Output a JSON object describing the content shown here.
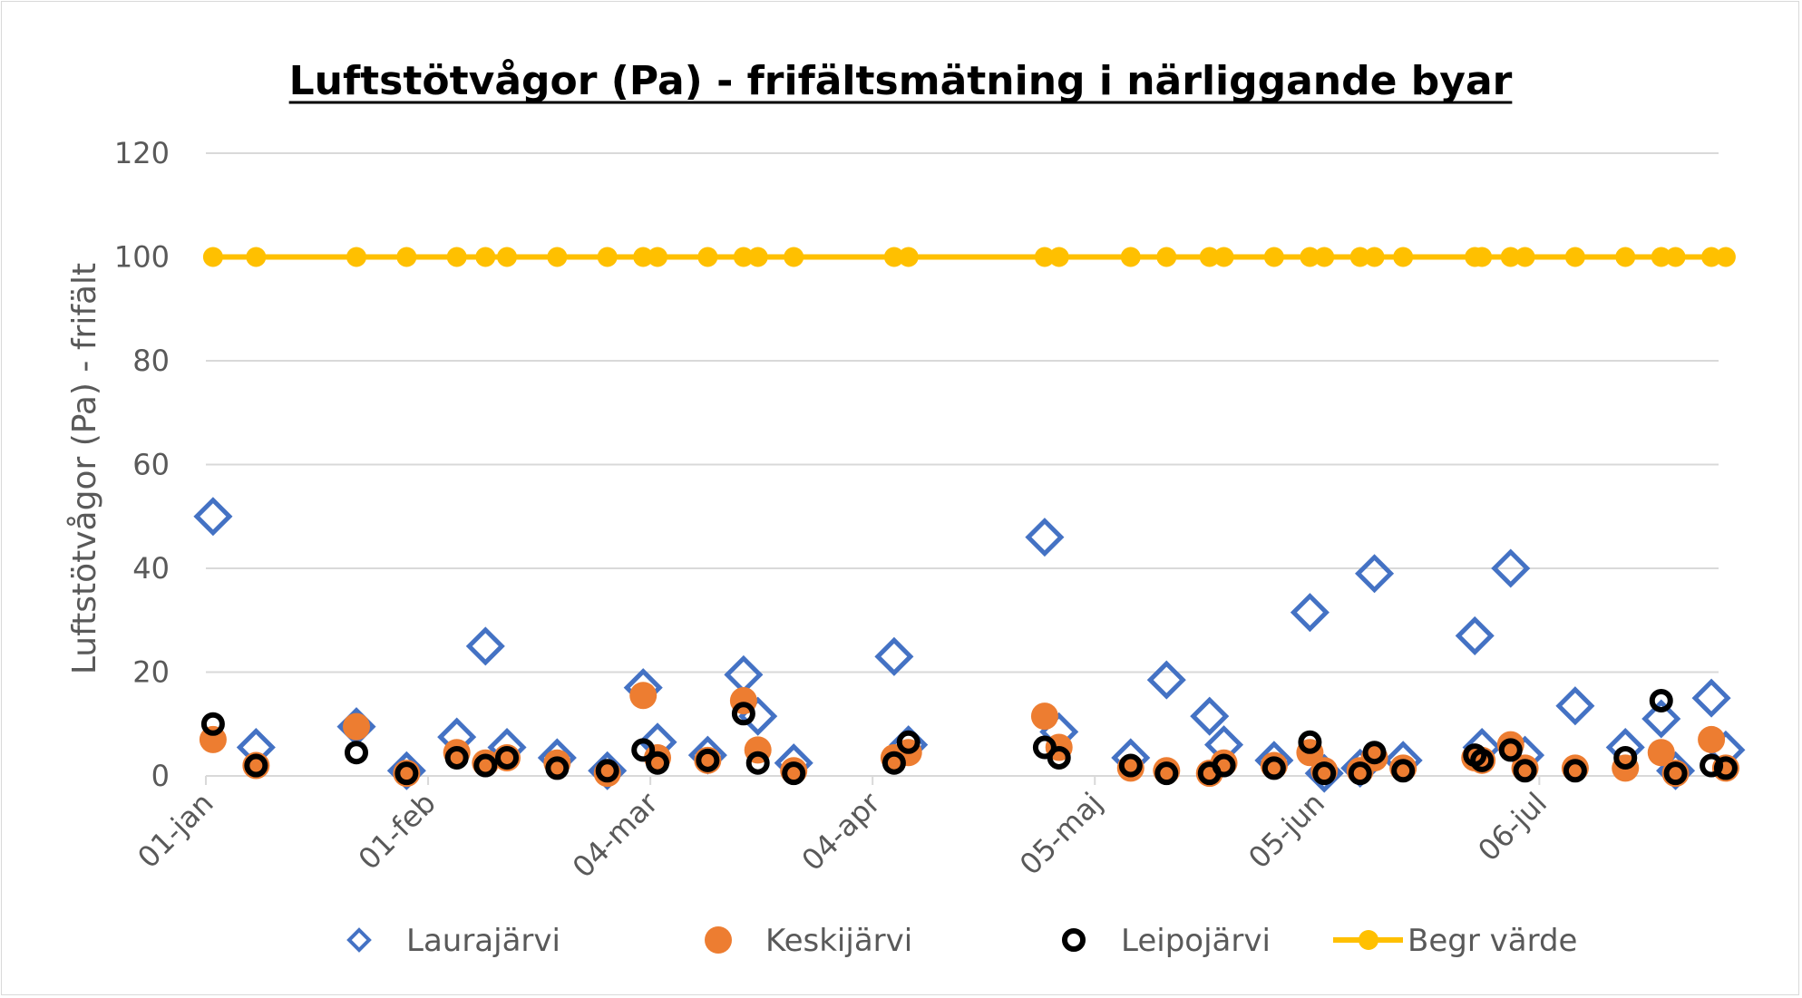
{
  "chart_data": {
    "type": "scatter",
    "title": "Luftstötvågor (Pa) - frifältsmätning i närliggande byar",
    "ylabel": "Luftstötvågor (Pa) - frifält",
    "xlabel": "",
    "ylim": [
      0,
      120
    ],
    "yticks": [
      "0",
      "20",
      "40",
      "60",
      "80",
      "100",
      "120"
    ],
    "xlim": [
      "2019-01-01",
      "2019-07-31"
    ],
    "xticks": [
      {
        "date": "2019-01-01",
        "label": "01-jan"
      },
      {
        "date": "2019-02-01",
        "label": "01-feb"
      },
      {
        "date": "2019-03-04",
        "label": "04-mar"
      },
      {
        "date": "2019-04-04",
        "label": "04-apr"
      },
      {
        "date": "2019-05-05",
        "label": "05-maj"
      },
      {
        "date": "2019-06-05",
        "label": "05-jun"
      },
      {
        "date": "2019-07-06",
        "label": "06-jul"
      }
    ],
    "grid": true,
    "legend_position": "bottom",
    "series": [
      {
        "name": "Laurajärvi",
        "marker": "diamond-open",
        "color": "#4472C4",
        "points": [
          [
            "2019-01-02",
            50
          ],
          [
            "2019-01-08",
            5.5
          ],
          [
            "2019-01-22",
            9.5
          ],
          [
            "2019-01-29",
            1
          ],
          [
            "2019-02-05",
            7.5
          ],
          [
            "2019-02-09",
            25
          ],
          [
            "2019-02-12",
            5.5
          ],
          [
            "2019-02-19",
            3.5
          ],
          [
            "2019-02-26",
            1
          ],
          [
            "2019-03-03",
            17
          ],
          [
            "2019-03-05",
            6.5
          ],
          [
            "2019-03-12",
            4
          ],
          [
            "2019-03-17",
            19.5
          ],
          [
            "2019-03-19",
            11.5
          ],
          [
            "2019-03-24",
            2.5
          ],
          [
            "2019-04-07",
            23
          ],
          [
            "2019-04-09",
            6
          ],
          [
            "2019-04-28",
            46
          ],
          [
            "2019-04-30",
            8.5
          ],
          [
            "2019-05-10",
            3.5
          ],
          [
            "2019-05-15",
            18.5
          ],
          [
            "2019-05-21",
            11.5
          ],
          [
            "2019-05-23",
            6
          ],
          [
            "2019-05-30",
            3
          ],
          [
            "2019-06-04",
            31.5
          ],
          [
            "2019-06-06",
            0.5
          ],
          [
            "2019-06-11",
            1.5
          ],
          [
            "2019-06-13",
            39
          ],
          [
            "2019-06-17",
            3
          ],
          [
            "2019-06-27",
            27
          ],
          [
            "2019-06-28",
            5.5
          ],
          [
            "2019-07-02",
            40
          ],
          [
            "2019-07-04",
            4
          ],
          [
            "2019-07-11",
            13.5
          ],
          [
            "2019-07-18",
            5.5
          ],
          [
            "2019-07-23",
            11
          ],
          [
            "2019-07-25",
            1
          ],
          [
            "2019-07-30",
            15
          ],
          [
            "2019-08-01",
            5
          ]
        ]
      },
      {
        "name": "Keskijärvi",
        "marker": "circle-filled",
        "color": "#ED7D31",
        "points": [
          [
            "2019-01-02",
            7
          ],
          [
            "2019-01-08",
            2
          ],
          [
            "2019-01-22",
            9.5
          ],
          [
            "2019-01-29",
            0.5
          ],
          [
            "2019-02-05",
            4.5
          ],
          [
            "2019-02-09",
            2.5
          ],
          [
            "2019-02-12",
            3.5
          ],
          [
            "2019-02-19",
            2.5
          ],
          [
            "2019-02-26",
            0.5
          ],
          [
            "2019-03-03",
            15.5
          ],
          [
            "2019-03-05",
            3.5
          ],
          [
            "2019-03-12",
            3
          ],
          [
            "2019-03-17",
            14.5
          ],
          [
            "2019-03-19",
            5
          ],
          [
            "2019-03-24",
            1
          ],
          [
            "2019-04-07",
            3.5
          ],
          [
            "2019-04-09",
            4.5
          ],
          [
            "2019-04-28",
            11.5
          ],
          [
            "2019-04-30",
            5.5
          ],
          [
            "2019-05-10",
            1.5
          ],
          [
            "2019-05-15",
            1
          ],
          [
            "2019-05-21",
            0.5
          ],
          [
            "2019-05-23",
            2.5
          ],
          [
            "2019-05-30",
            2
          ],
          [
            "2019-06-04",
            4.5
          ],
          [
            "2019-06-06",
            1
          ],
          [
            "2019-06-11",
            1
          ],
          [
            "2019-06-13",
            3.5
          ],
          [
            "2019-06-17",
            1.5
          ],
          [
            "2019-06-27",
            3.5
          ],
          [
            "2019-06-28",
            3
          ],
          [
            "2019-07-02",
            6
          ],
          [
            "2019-07-04",
            1.5
          ],
          [
            "2019-07-11",
            1.5
          ],
          [
            "2019-07-18",
            1.5
          ],
          [
            "2019-07-23",
            4.5
          ],
          [
            "2019-07-25",
            0.5
          ],
          [
            "2019-07-30",
            7
          ],
          [
            "2019-08-01",
            1.5
          ]
        ]
      },
      {
        "name": "Leipojärvi",
        "marker": "circle-open",
        "color": "#000000",
        "points": [
          [
            "2019-01-02",
            10
          ],
          [
            "2019-01-08",
            2
          ],
          [
            "2019-01-22",
            4.5
          ],
          [
            "2019-01-29",
            0.5
          ],
          [
            "2019-02-05",
            3.5
          ],
          [
            "2019-02-09",
            2
          ],
          [
            "2019-02-12",
            3.5
          ],
          [
            "2019-02-19",
            1.5
          ],
          [
            "2019-02-26",
            1
          ],
          [
            "2019-03-03",
            5
          ],
          [
            "2019-03-05",
            2.5
          ],
          [
            "2019-03-12",
            3
          ],
          [
            "2019-03-17",
            12
          ],
          [
            "2019-03-19",
            2.5
          ],
          [
            "2019-03-24",
            0.5
          ],
          [
            "2019-04-07",
            2.5
          ],
          [
            "2019-04-09",
            6.5
          ],
          [
            "2019-04-28",
            5.5
          ],
          [
            "2019-04-30",
            3.5
          ],
          [
            "2019-05-10",
            2
          ],
          [
            "2019-05-15",
            0.5
          ],
          [
            "2019-05-21",
            0.5
          ],
          [
            "2019-05-23",
            2
          ],
          [
            "2019-05-30",
            1.5
          ],
          [
            "2019-06-04",
            6.5
          ],
          [
            "2019-06-06",
            0.5
          ],
          [
            "2019-06-11",
            0.5
          ],
          [
            "2019-06-13",
            4.5
          ],
          [
            "2019-06-17",
            1
          ],
          [
            "2019-06-27",
            4
          ],
          [
            "2019-06-28",
            3
          ],
          [
            "2019-07-02",
            5
          ],
          [
            "2019-07-04",
            1
          ],
          [
            "2019-07-11",
            1
          ],
          [
            "2019-07-18",
            3.5
          ],
          [
            "2019-07-23",
            14.5
          ],
          [
            "2019-07-25",
            0.5
          ],
          [
            "2019-07-30",
            2
          ],
          [
            "2019-08-01",
            1.5
          ]
        ]
      },
      {
        "name": "Begr värde",
        "marker": "line-circle",
        "color": "#FFC000",
        "points": [
          [
            "2019-01-02",
            100
          ],
          [
            "2019-01-08",
            100
          ],
          [
            "2019-01-22",
            100
          ],
          [
            "2019-01-29",
            100
          ],
          [
            "2019-02-05",
            100
          ],
          [
            "2019-02-09",
            100
          ],
          [
            "2019-02-12",
            100
          ],
          [
            "2019-02-19",
            100
          ],
          [
            "2019-02-26",
            100
          ],
          [
            "2019-03-03",
            100
          ],
          [
            "2019-03-05",
            100
          ],
          [
            "2019-03-12",
            100
          ],
          [
            "2019-03-17",
            100
          ],
          [
            "2019-03-19",
            100
          ],
          [
            "2019-03-24",
            100
          ],
          [
            "2019-04-07",
            100
          ],
          [
            "2019-04-09",
            100
          ],
          [
            "2019-04-28",
            100
          ],
          [
            "2019-04-30",
            100
          ],
          [
            "2019-05-10",
            100
          ],
          [
            "2019-05-15",
            100
          ],
          [
            "2019-05-21",
            100
          ],
          [
            "2019-05-23",
            100
          ],
          [
            "2019-05-30",
            100
          ],
          [
            "2019-06-04",
            100
          ],
          [
            "2019-06-06",
            100
          ],
          [
            "2019-06-11",
            100
          ],
          [
            "2019-06-13",
            100
          ],
          [
            "2019-06-17",
            100
          ],
          [
            "2019-06-27",
            100
          ],
          [
            "2019-06-28",
            100
          ],
          [
            "2019-07-02",
            100
          ],
          [
            "2019-07-04",
            100
          ],
          [
            "2019-07-11",
            100
          ],
          [
            "2019-07-18",
            100
          ],
          [
            "2019-07-23",
            100
          ],
          [
            "2019-07-25",
            100
          ],
          [
            "2019-07-30",
            100
          ],
          [
            "2019-08-01",
            100
          ]
        ]
      }
    ]
  },
  "colors": {
    "gridline": "#d9d9d9",
    "axis_text": "#595959",
    "title_text": "#000000"
  }
}
